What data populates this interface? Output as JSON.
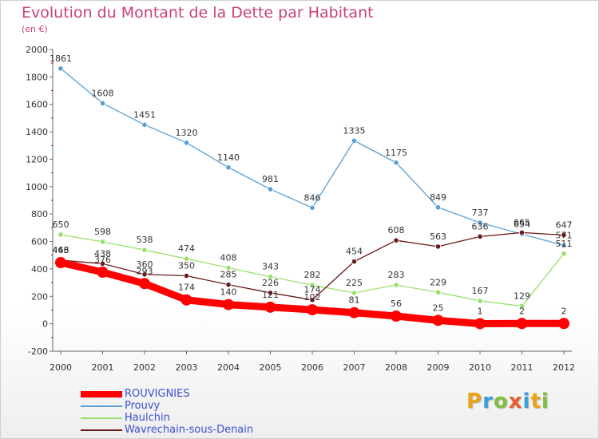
{
  "header": {
    "title": "Evolution du Montant de la Dette par Habitant",
    "subtitle": "(en €)"
  },
  "logo": {
    "text": "Proxiti",
    "colors": [
      "#e8a317",
      "#3aa0d8",
      "#7fbf3f",
      "#e85d2a",
      "#3aa0d8",
      "#e8a317",
      "#7fbf3f"
    ]
  },
  "chart_data": {
    "type": "line",
    "x": [
      2000,
      2001,
      2002,
      2003,
      2004,
      2005,
      2006,
      2007,
      2008,
      2009,
      2010,
      2011,
      2012
    ],
    "ylim": [
      -200,
      2000
    ],
    "yticks": [
      -200,
      0,
      200,
      400,
      600,
      800,
      1000,
      1200,
      1400,
      1600,
      1800,
      2000
    ],
    "grid": false,
    "legend": "bottom-left",
    "series": [
      {
        "name": "ROUVIGNIES",
        "color": "#ff0000",
        "values": [
          446,
          376,
          293,
          174,
          140,
          121,
          102,
          81,
          56,
          25,
          1,
          2,
          2
        ]
      },
      {
        "name": "Prouvy",
        "color": "#5a9fd4",
        "values": [
          1861,
          1608,
          1451,
          1320,
          1140,
          981,
          846,
          1335,
          1175,
          849,
          737,
          654,
          571
        ]
      },
      {
        "name": "Haulchin",
        "color": "#99e06b",
        "values": [
          650,
          598,
          538,
          474,
          408,
          343,
          282,
          225,
          283,
          229,
          167,
          129,
          511
        ]
      },
      {
        "name": "Wavrechain-sous-Denain",
        "color": "#6b1a1a",
        "values": [
          463,
          438,
          360,
          350,
          285,
          226,
          174,
          454,
          608,
          563,
          636,
          665,
          647
        ]
      }
    ]
  }
}
